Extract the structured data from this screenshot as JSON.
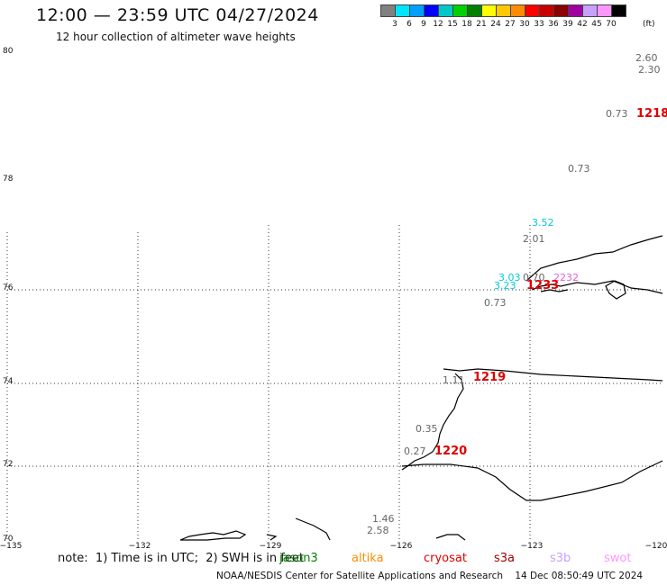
{
  "header": {
    "title": "12:00 — 23:59 UTC 04/27/2024",
    "subtitle": "12 hour collection of altimeter wave heights"
  },
  "colorbar": {
    "colors": [
      "#808080",
      "#00e5ff",
      "#00a0ff",
      "#0000ff",
      "#00c8c8",
      "#00d000",
      "#008000",
      "#ffff00",
      "#ffc800",
      "#ff8c00",
      "#ff0000",
      "#c80000",
      "#8b0000",
      "#a000a0",
      "#c8a0ff",
      "#ff96ff",
      "#000000"
    ],
    "labels": [
      "3",
      "6",
      "9",
      "12",
      "15",
      "18",
      "21",
      "24",
      "27",
      "30",
      "33",
      "36",
      "39",
      "42",
      "45",
      "70"
    ],
    "unit": "(ft)"
  },
  "axes": {
    "lat_labels": [
      "80",
      "78",
      "76",
      "74",
      "72",
      "70"
    ],
    "lon_labels": [
      "−135",
      "−132",
      "−129",
      "−126",
      "−123",
      "−120"
    ]
  },
  "observations": [
    {
      "text": "2.60",
      "color": "#666666"
    },
    {
      "text": "2.30",
      "color": "#666666"
    },
    {
      "text": "0.73",
      "color": "#666666"
    },
    {
      "text": "0.73",
      "color": "#666666"
    },
    {
      "text": "3.52",
      "color": "#00c8e0"
    },
    {
      "text": "2.01",
      "color": "#666666"
    },
    {
      "text": "3.03",
      "color": "#00c8e0"
    },
    {
      "text": "0.70",
      "color": "#666666"
    },
    {
      "text": "3.23",
      "color": "#00c8e0"
    },
    {
      "text": "0.73",
      "color": "#666666"
    },
    {
      "text": "2232",
      "color": "#e060e0"
    },
    {
      "text": "1.11",
      "color": "#666666"
    },
    {
      "text": "0.35",
      "color": "#666666"
    },
    {
      "text": "0.27",
      "color": "#666666"
    },
    {
      "text": "1.46",
      "color": "#666666"
    },
    {
      "text": "2.58",
      "color": "#666666"
    }
  ],
  "passes": [
    {
      "text": "1218",
      "color": "#e00000"
    },
    {
      "text": "1219",
      "color": "#e00000"
    },
    {
      "text": "1220",
      "color": "#e00000"
    },
    {
      "text": "1233",
      "color": "#e00000"
    }
  ],
  "note": "note:  1) Time is in UTC;  2) SWH is in feet",
  "satellites": [
    {
      "name": "jason3",
      "color": "#008000"
    },
    {
      "name": "altika",
      "color": "#ff8c00"
    },
    {
      "name": "cryosat",
      "color": "#e00000"
    },
    {
      "name": "s3a",
      "color": "#a00000"
    },
    {
      "name": "s3b",
      "color": "#c8a0ff"
    },
    {
      "name": "swot",
      "color": "#ff96ff"
    }
  ],
  "footer": "NOAA/NESDIS Center for Satellite Applications and Research    14 Dec 08:50:49 UTC 2024"
}
